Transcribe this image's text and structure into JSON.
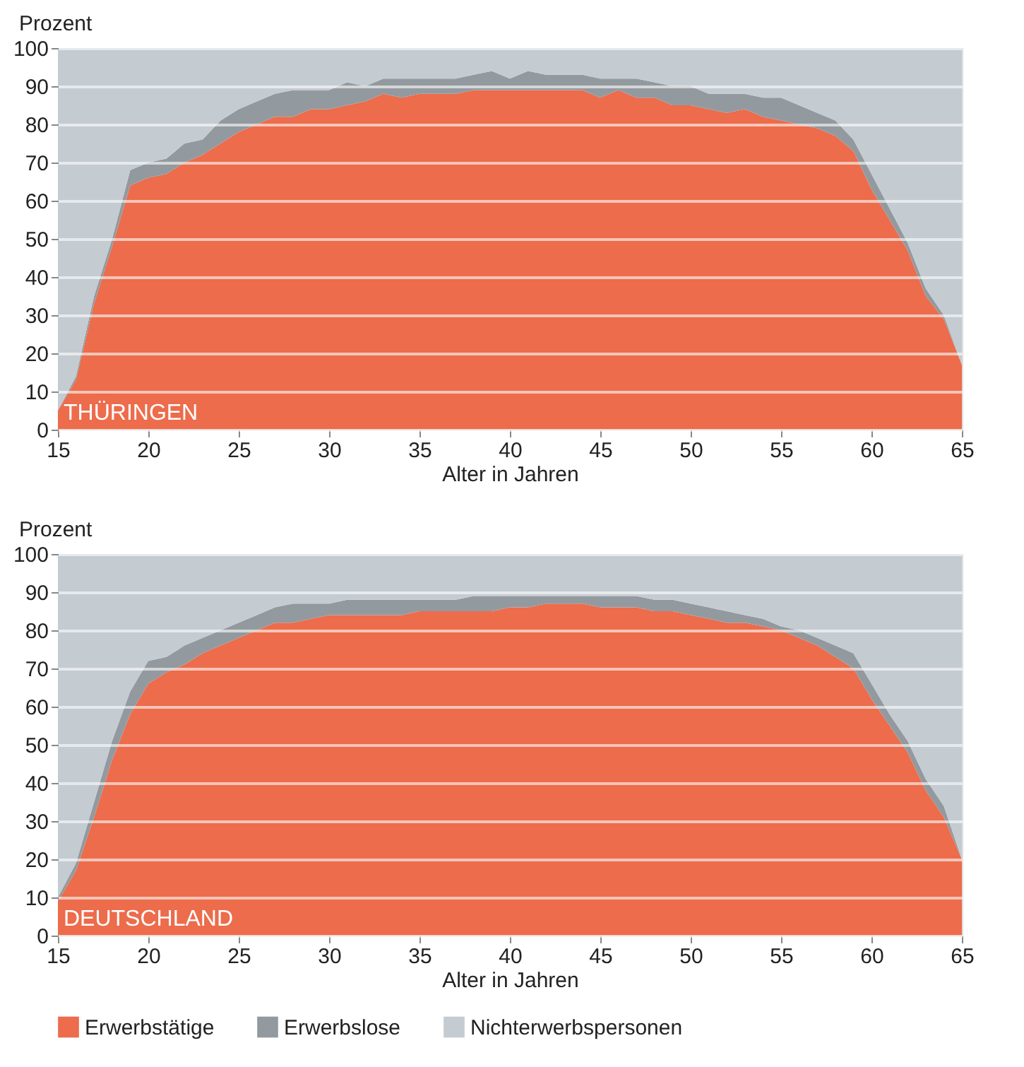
{
  "chart_data": [
    {
      "type": "area",
      "stacked": true,
      "title": "THÜRINGEN",
      "ylabel": "Prozent",
      "xlabel": "Alter in Jahren",
      "x": [
        15,
        16,
        17,
        18,
        19,
        20,
        21,
        22,
        23,
        24,
        25,
        26,
        27,
        28,
        29,
        30,
        31,
        32,
        33,
        34,
        35,
        36,
        37,
        38,
        39,
        40,
        41,
        42,
        43,
        44,
        45,
        46,
        47,
        48,
        49,
        50,
        51,
        52,
        53,
        54,
        55,
        56,
        57,
        58,
        59,
        60,
        61,
        62,
        63,
        64,
        65
      ],
      "series": [
        {
          "color": "#ec6c4c",
          "values": [
            5,
            13,
            33,
            48,
            64,
            66,
            67,
            70,
            72,
            75,
            78,
            80,
            82,
            82,
            84,
            84,
            85,
            86,
            88,
            87,
            88,
            88,
            88,
            89,
            89,
            89,
            89,
            89,
            89,
            89,
            87,
            89,
            87,
            87,
            85,
            85,
            84,
            83,
            84,
            82,
            81,
            80,
            79,
            77,
            73,
            63,
            55,
            47,
            35,
            29,
            17
          ]
        },
        {
          "color": "#939a9f",
          "values": [
            0,
            1,
            2,
            2,
            4,
            4,
            4,
            5,
            4,
            6,
            6,
            6,
            6,
            7,
            5,
            5,
            6,
            4,
            4,
            5,
            4,
            4,
            4,
            4,
            5,
            3,
            5,
            4,
            4,
            4,
            5,
            3,
            5,
            4,
            5,
            5,
            4,
            5,
            4,
            5,
            6,
            5,
            4,
            4,
            3,
            4,
            3,
            2,
            2,
            1,
            0
          ]
        },
        {
          "color": "#c4cbd1",
          "values": [
            95,
            86,
            65,
            50,
            32,
            30,
            29,
            25,
            24,
            19,
            16,
            14,
            12,
            11,
            11,
            11,
            9,
            10,
            8,
            8,
            8,
            8,
            8,
            7,
            6,
            8,
            6,
            7,
            7,
            7,
            8,
            8,
            8,
            9,
            10,
            10,
            12,
            12,
            12,
            13,
            13,
            15,
            17,
            19,
            24,
            33,
            42,
            51,
            63,
            70,
            83
          ]
        }
      ],
      "xlim": [
        15,
        65
      ],
      "xticks": [
        15,
        20,
        25,
        30,
        35,
        40,
        45,
        50,
        55,
        60,
        65
      ],
      "ylim": [
        0,
        100
      ],
      "yticks": [
        0,
        10,
        20,
        30,
        40,
        50,
        60,
        70,
        80,
        90,
        100
      ],
      "grid": "y",
      "legend": false
    },
    {
      "type": "area",
      "stacked": true,
      "title": "DEUTSCHLAND",
      "ylabel": "Prozent",
      "xlabel": "Alter in Jahren",
      "x": [
        15,
        16,
        17,
        18,
        19,
        20,
        21,
        22,
        23,
        24,
        25,
        26,
        27,
        28,
        29,
        30,
        31,
        32,
        33,
        34,
        35,
        36,
        37,
        38,
        39,
        40,
        41,
        42,
        43,
        44,
        45,
        46,
        47,
        48,
        49,
        50,
        51,
        52,
        53,
        54,
        55,
        56,
        57,
        58,
        59,
        60,
        61,
        62,
        63,
        64,
        65
      ],
      "series": [
        {
          "name": "Erwerbstätige",
          "color": "#ec6c4c",
          "values": [
            9,
            17,
            31,
            46,
            58,
            66,
            69,
            71,
            74,
            76,
            78,
            80,
            82,
            82,
            83,
            84,
            84,
            84,
            84,
            84,
            85,
            85,
            85,
            85,
            85,
            86,
            86,
            87,
            87,
            87,
            86,
            86,
            86,
            85,
            85,
            84,
            83,
            82,
            82,
            81,
            80,
            78,
            76,
            73,
            70,
            62,
            55,
            48,
            38,
            31,
            20
          ]
        },
        {
          "name": "Erwerbslose",
          "color": "#939a9f",
          "values": [
            1,
            2,
            4,
            5,
            6,
            6,
            4,
            5,
            4,
            4,
            4,
            4,
            4,
            5,
            4,
            3,
            4,
            4,
            4,
            4,
            3,
            3,
            3,
            4,
            4,
            3,
            3,
            2,
            2,
            2,
            3,
            3,
            3,
            3,
            3,
            3,
            3,
            3,
            2,
            2,
            1,
            2,
            2,
            3,
            4,
            4,
            3,
            3,
            3,
            3,
            0
          ]
        },
        {
          "name": "Nichterwerbspersonen",
          "color": "#c4cbd1",
          "values": [
            90,
            81,
            65,
            49,
            36,
            28,
            27,
            24,
            22,
            20,
            18,
            16,
            14,
            13,
            13,
            13,
            12,
            12,
            12,
            12,
            12,
            12,
            12,
            11,
            11,
            11,
            11,
            11,
            11,
            11,
            11,
            11,
            11,
            12,
            12,
            13,
            14,
            15,
            16,
            17,
            19,
            20,
            22,
            24,
            26,
            34,
            42,
            49,
            59,
            66,
            80
          ]
        }
      ],
      "xlim": [
        15,
        65
      ],
      "xticks": [
        15,
        20,
        25,
        30,
        35,
        40,
        45,
        50,
        55,
        60,
        65
      ],
      "ylim": [
        0,
        100
      ],
      "yticks": [
        0,
        10,
        20,
        30,
        40,
        50,
        60,
        70,
        80,
        90,
        100
      ],
      "grid": "y",
      "legend": "bottom"
    }
  ]
}
